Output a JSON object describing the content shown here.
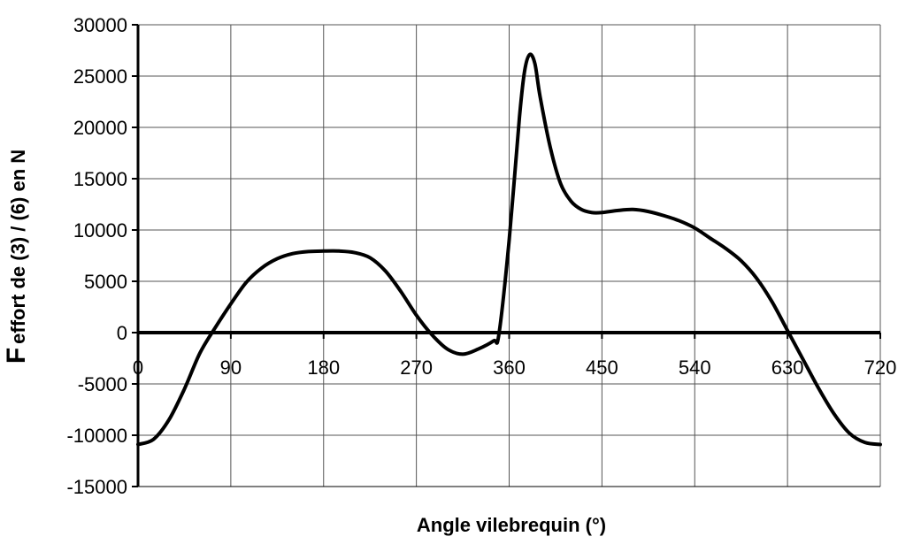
{
  "chart_data": {
    "type": "line",
    "title": "",
    "xlabel": "Angle vilebrequin (°)",
    "ylabel_prefix": "F",
    "ylabel": "effort de (3) / (6) en N",
    "xlim": [
      0,
      720
    ],
    "ylim": [
      -15000,
      30000
    ],
    "xticks": [
      0,
      90,
      180,
      270,
      360,
      450,
      540,
      630,
      720
    ],
    "yticks": [
      -15000,
      -10000,
      -5000,
      0,
      5000,
      10000,
      15000,
      20000,
      25000,
      30000
    ],
    "grid": true,
    "legend": "none",
    "line_color": "#000000",
    "series": [
      {
        "x": [
          0,
          15,
          30,
          45,
          60,
          75,
          90,
          105,
          120,
          135,
          150,
          165,
          180,
          195,
          210,
          225,
          240,
          255,
          270,
          285,
          300,
          315,
          330,
          345,
          350,
          360,
          370,
          375,
          380,
          385,
          390,
          400,
          410,
          420,
          430,
          440,
          450,
          465,
          480,
          495,
          510,
          525,
          540,
          555,
          570,
          585,
          600,
          615,
          630,
          645,
          660,
          675,
          690,
          705,
          720
        ],
        "y": [
          -10900,
          -10400,
          -8500,
          -5500,
          -2000,
          500,
          2800,
          4900,
          6300,
          7200,
          7700,
          7900,
          7950,
          7950,
          7800,
          7300,
          6000,
          4000,
          1700,
          -200,
          -1600,
          -2100,
          -1600,
          -800,
          -200,
          9000,
          21000,
          25500,
          27100,
          26200,
          23000,
          18000,
          14500,
          12800,
          12000,
          11700,
          11700,
          11900,
          12000,
          11800,
          11400,
          10900,
          10200,
          9200,
          8200,
          7000,
          5300,
          3000,
          200,
          -2600,
          -5400,
          -7900,
          -9800,
          -10700,
          -10900
        ]
      }
    ]
  }
}
